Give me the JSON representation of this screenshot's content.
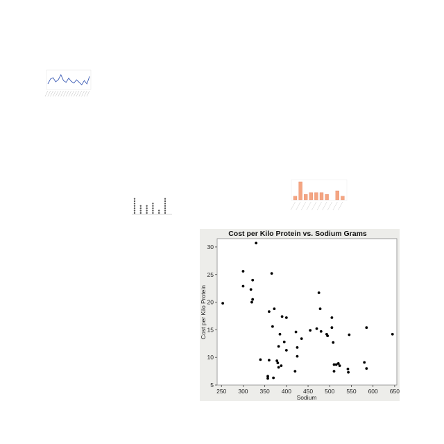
{
  "chart_data": [
    {
      "type": "line",
      "title": "",
      "xlabel": "",
      "ylabel": "",
      "values": [
        40,
        52,
        55,
        45,
        50,
        62,
        48,
        44,
        54,
        46,
        42,
        50,
        44,
        38,
        48,
        40,
        58
      ],
      "color": "#3b5bb5"
    },
    {
      "type": "scatter",
      "title": "",
      "xlabel": "",
      "ylabel": "",
      "columns": [
        7,
        0,
        4,
        0,
        4,
        0,
        5,
        0,
        2,
        0,
        7
      ],
      "color": "#555555"
    },
    {
      "type": "bar",
      "title": "",
      "xlabel": "",
      "ylabel": "",
      "values": [
        2,
        10,
        3,
        4,
        4,
        4,
        3,
        0,
        5,
        2
      ],
      "color": "#f4a582"
    },
    {
      "type": "scatter",
      "title": "Cost per Kilo Protein vs. Sodium Grams",
      "xlabel": "Sodium",
      "ylabel": "Cost per Kilo Protein",
      "xlim": [
        240,
        655
      ],
      "ylim": [
        5,
        31.5
      ],
      "xticks": [
        250,
        300,
        350,
        400,
        450,
        500,
        550,
        600,
        650
      ],
      "yticks": [
        5,
        10,
        15,
        20,
        25,
        30
      ],
      "grid": false,
      "point_color": "#000000",
      "points": [
        [
          253,
          19.8
        ],
        [
          300,
          25.6
        ],
        [
          300,
          22.9
        ],
        [
          318,
          22.3
        ],
        [
          322,
          24.0
        ],
        [
          320,
          20.0
        ],
        [
          322,
          20.5
        ],
        [
          330,
          30.7
        ],
        [
          340,
          9.6
        ],
        [
          357,
          6.6
        ],
        [
          357,
          6.2
        ],
        [
          360,
          9.5
        ],
        [
          360,
          18.3
        ],
        [
          366,
          25.2
        ],
        [
          368,
          15.6
        ],
        [
          370,
          6.3
        ],
        [
          372,
          18.8
        ],
        [
          378,
          9.4
        ],
        [
          380,
          9.0
        ],
        [
          382,
          12.0
        ],
        [
          382,
          8.2
        ],
        [
          385,
          14.2
        ],
        [
          388,
          8.5
        ],
        [
          390,
          17.4
        ],
        [
          395,
          12.8
        ],
        [
          400,
          11.3
        ],
        [
          400,
          17.2
        ],
        [
          420,
          7.5
        ],
        [
          422,
          14.6
        ],
        [
          425,
          11.8
        ],
        [
          425,
          10.2
        ],
        [
          435,
          13.4
        ],
        [
          455,
          14.9
        ],
        [
          470,
          15.2
        ],
        [
          475,
          21.7
        ],
        [
          478,
          18.8
        ],
        [
          480,
          14.7
        ],
        [
          493,
          14.2
        ],
        [
          495,
          13.9
        ],
        [
          505,
          17.2
        ],
        [
          505,
          15.4
        ],
        [
          508,
          12.7
        ],
        [
          510,
          8.7
        ],
        [
          510,
          7.5
        ],
        [
          515,
          8.7
        ],
        [
          520,
          8.9
        ],
        [
          523,
          8.5
        ],
        [
          545,
          14.1
        ],
        [
          542,
          7.9
        ],
        [
          543,
          7.3
        ],
        [
          580,
          9.1
        ],
        [
          585,
          15.4
        ],
        [
          585,
          8.0
        ],
        [
          645,
          14.2
        ]
      ]
    }
  ]
}
